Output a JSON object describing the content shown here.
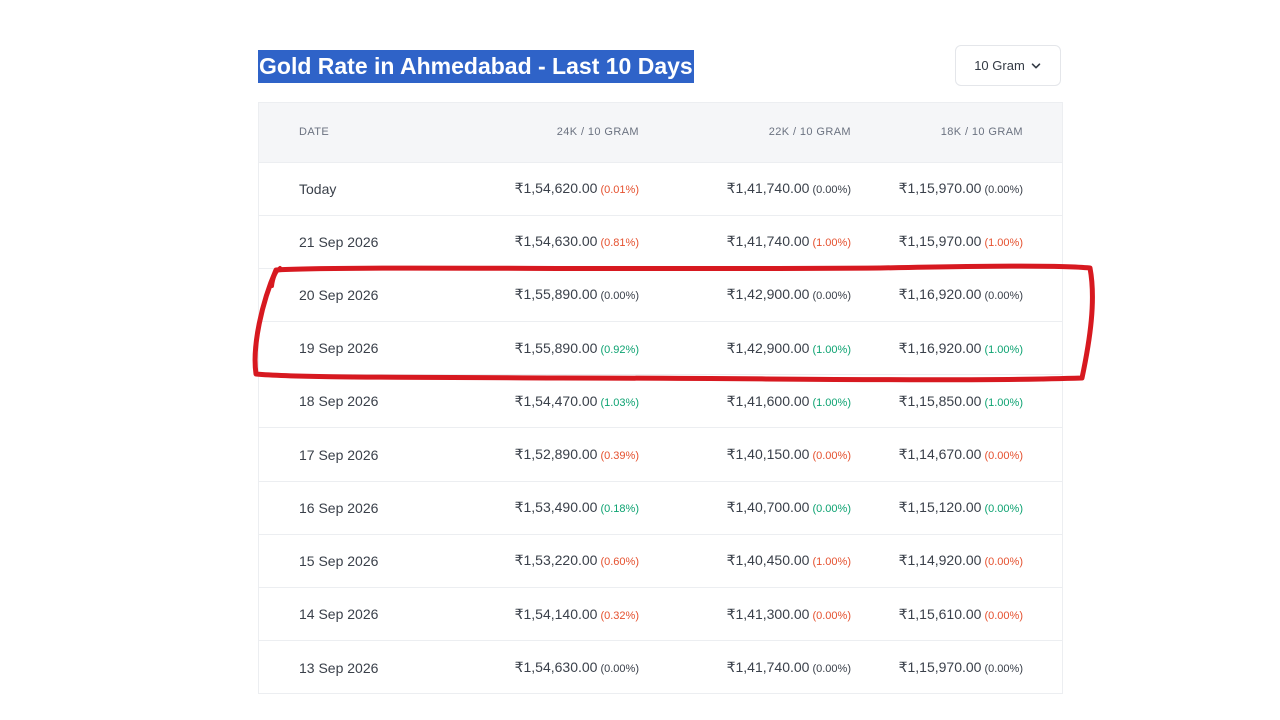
{
  "title": "Gold Rate in Ahmedabad - Last 10 Days",
  "unit_selector": {
    "value": "10 Gram",
    "icon": "chevron-down-icon"
  },
  "table": {
    "headers": [
      "DATE",
      "24K / 10 GRAM",
      "22K / 10 GRAM",
      "18K / 10 GRAM"
    ],
    "rows": [
      {
        "date": "Today",
        "k24": {
          "price": "₹1,54,620.00",
          "change": "(0.01%)",
          "trend": "down"
        },
        "k22": {
          "price": "₹1,41,740.00",
          "change": "(0.00%)",
          "trend": "flat"
        },
        "k18": {
          "price": "₹1,15,970.00",
          "change": "(0.00%)",
          "trend": "flat"
        }
      },
      {
        "date": "21 Sep 2026",
        "k24": {
          "price": "₹1,54,630.00",
          "change": "(0.81%)",
          "trend": "down"
        },
        "k22": {
          "price": "₹1,41,740.00",
          "change": "(1.00%)",
          "trend": "down"
        },
        "k18": {
          "price": "₹1,15,970.00",
          "change": "(1.00%)",
          "trend": "down"
        }
      },
      {
        "date": "20 Sep 2026",
        "k24": {
          "price": "₹1,55,890.00",
          "change": "(0.00%)",
          "trend": "flat"
        },
        "k22": {
          "price": "₹1,42,900.00",
          "change": "(0.00%)",
          "trend": "flat"
        },
        "k18": {
          "price": "₹1,16,920.00",
          "change": "(0.00%)",
          "trend": "flat"
        }
      },
      {
        "date": "19 Sep 2026",
        "k24": {
          "price": "₹1,55,890.00",
          "change": "(0.92%)",
          "trend": "up"
        },
        "k22": {
          "price": "₹1,42,900.00",
          "change": "(1.00%)",
          "trend": "up"
        },
        "k18": {
          "price": "₹1,16,920.00",
          "change": "(1.00%)",
          "trend": "up"
        }
      },
      {
        "date": "18 Sep 2026",
        "k24": {
          "price": "₹1,54,470.00",
          "change": "(1.03%)",
          "trend": "up"
        },
        "k22": {
          "price": "₹1,41,600.00",
          "change": "(1.00%)",
          "trend": "up"
        },
        "k18": {
          "price": "₹1,15,850.00",
          "change": "(1.00%)",
          "trend": "up"
        }
      },
      {
        "date": "17 Sep 2026",
        "k24": {
          "price": "₹1,52,890.00",
          "change": "(0.39%)",
          "trend": "down"
        },
        "k22": {
          "price": "₹1,40,150.00",
          "change": "(0.00%)",
          "trend": "down"
        },
        "k18": {
          "price": "₹1,14,670.00",
          "change": "(0.00%)",
          "trend": "down"
        }
      },
      {
        "date": "16 Sep 2026",
        "k24": {
          "price": "₹1,53,490.00",
          "change": "(0.18%)",
          "trend": "up"
        },
        "k22": {
          "price": "₹1,40,700.00",
          "change": "(0.00%)",
          "trend": "up"
        },
        "k18": {
          "price": "₹1,15,120.00",
          "change": "(0.00%)",
          "trend": "up"
        }
      },
      {
        "date": "15 Sep 2026",
        "k24": {
          "price": "₹1,53,220.00",
          "change": "(0.60%)",
          "trend": "down"
        },
        "k22": {
          "price": "₹1,40,450.00",
          "change": "(1.00%)",
          "trend": "down"
        },
        "k18": {
          "price": "₹1,14,920.00",
          "change": "(0.00%)",
          "trend": "down"
        }
      },
      {
        "date": "14 Sep 2026",
        "k24": {
          "price": "₹1,54,140.00",
          "change": "(0.32%)",
          "trend": "down"
        },
        "k22": {
          "price": "₹1,41,300.00",
          "change": "(0.00%)",
          "trend": "down"
        },
        "k18": {
          "price": "₹1,15,610.00",
          "change": "(0.00%)",
          "trend": "down"
        }
      },
      {
        "date": "13 Sep 2026",
        "k24": {
          "price": "₹1,54,630.00",
          "change": "(0.00%)",
          "trend": "flat"
        },
        "k22": {
          "price": "₹1,41,740.00",
          "change": "(0.00%)",
          "trend": "flat"
        },
        "k18": {
          "price": "₹1,15,970.00",
          "change": "(0.00%)",
          "trend": "flat"
        }
      }
    ]
  },
  "annotation": {
    "type": "hand-drawn-box",
    "color": "#d71920",
    "rows": [
      "20 Sep 2026",
      "19 Sep 2026"
    ]
  },
  "colors": {
    "title_highlight": "#2f63c8",
    "down": "#e5512f",
    "up": "#0ea372",
    "flat": "#3a404a"
  }
}
